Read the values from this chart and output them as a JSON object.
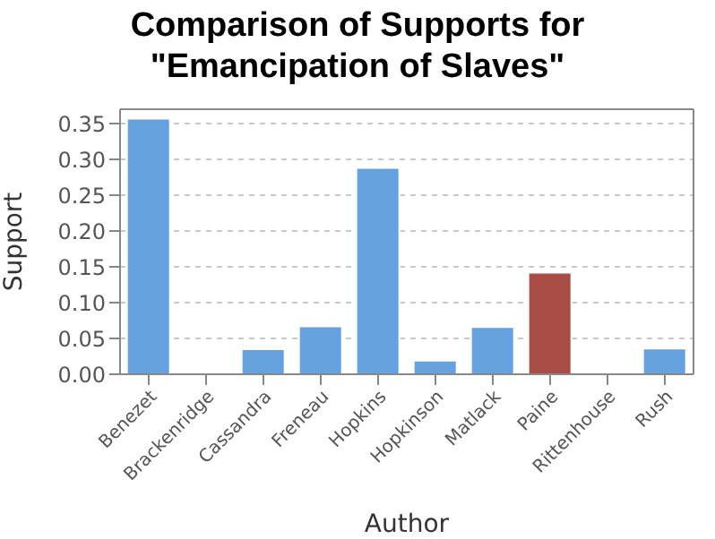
{
  "chart_data": {
    "type": "bar",
    "title": "Comparison of Supports for\n\"Emancipation of Slaves\"",
    "xlabel": "Author",
    "ylabel": "Support",
    "categories": [
      "Benezet",
      "Brackenridge",
      "Cassandra",
      "Freneau",
      "Hopkins",
      "Hopkinson",
      "Matlack",
      "Paine",
      "Rittenhouse",
      "Rush"
    ],
    "values": [
      0.357,
      0,
      0.035,
      0.067,
      0.288,
      0.019,
      0.066,
      0.142,
      0,
      0.036
    ],
    "colors": [
      "#65a1de",
      "#65a1de",
      "#65a1de",
      "#65a1de",
      "#65a1de",
      "#65a1de",
      "#65a1de",
      "#a84c45",
      "#65a1de",
      "#65a1de"
    ],
    "ylim": [
      0,
      0.37
    ],
    "yticks": [
      {
        "value": 0,
        "label": "0.00"
      },
      {
        "value": 0.05,
        "label": "0.05"
      },
      {
        "value": 0.1,
        "label": "0.10"
      },
      {
        "value": 0.15,
        "label": "0.15"
      },
      {
        "value": 0.2,
        "label": "0.20"
      },
      {
        "value": 0.25,
        "label": "0.25"
      },
      {
        "value": 0.3,
        "label": "0.30"
      },
      {
        "value": 0.35,
        "label": "0.35"
      }
    ],
    "grid": "y"
  }
}
